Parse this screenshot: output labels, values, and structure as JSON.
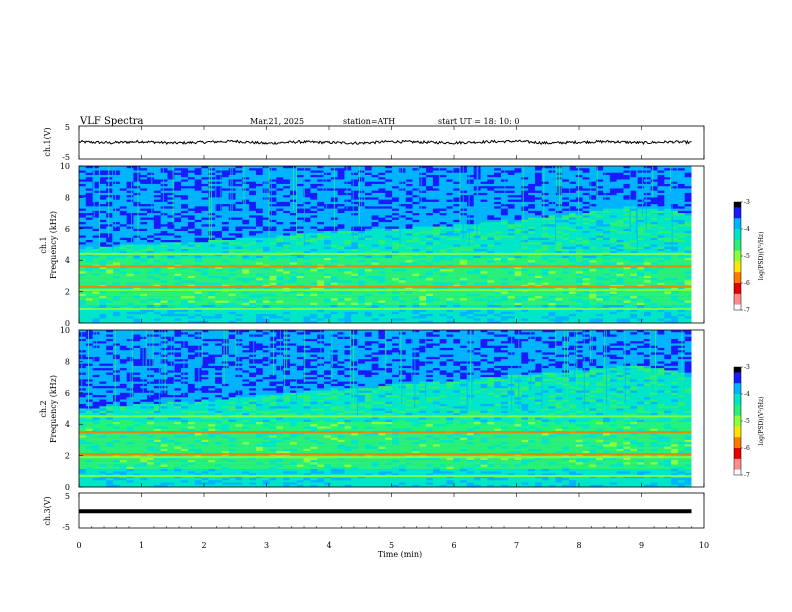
{
  "header": {
    "title": "VLF  Spectra",
    "date": "Mar.21, 2025",
    "station": "station=ATH",
    "start": "start  UT  =    18: 10: 0"
  },
  "colorbar": {
    "label": "log(PSD)(V²/Hz)",
    "ticks": [
      "-3",
      "-4",
      "-5",
      "-6",
      "-7"
    ],
    "colors": [
      "#000000",
      "#1a1aff",
      "#00b4ff",
      "#00e6c8",
      "#28f07a",
      "#8cff3c",
      "#ffe600",
      "#ff7800",
      "#e60000",
      "#ff8c8c",
      "#ffffff"
    ]
  },
  "chart_data": [
    {
      "type": "line",
      "panel": "ch1",
      "ylabel": "ch.1(V)",
      "xlabel": "",
      "ylim": [
        -5,
        5
      ],
      "yticks": [
        "5",
        "-5"
      ],
      "x": [
        0,
        0.5,
        1,
        1.5,
        2,
        2.5,
        3,
        3.5,
        4,
        4.5,
        5,
        5.5,
        6,
        6.5,
        7,
        7.5,
        8,
        8.5,
        9,
        9.5,
        9.8
      ],
      "values": [
        0.2,
        -0.1,
        0.3,
        -0.2,
        0.1,
        0.4,
        -0.3,
        0.2,
        0.0,
        -0.2,
        0.3,
        0.1,
        -0.1,
        0.2,
        0.4,
        -0.2,
        0.1,
        0.3,
        -0.1,
        0.2,
        0.0
      ]
    },
    {
      "type": "heatmap",
      "panel": "ch1-spectrogram",
      "ylabel": "ch.1\nFrequency (kHz)",
      "ylim": [
        0,
        10
      ],
      "yticks": [
        "0",
        "2",
        "4",
        "6",
        "8",
        "10"
      ],
      "xlim": [
        0,
        10
      ],
      "data_end_min": 9.8,
      "value_range": [
        -7,
        -3
      ],
      "hiss_upper_khz": {
        "x": [
          0,
          2,
          4,
          6,
          8,
          8.8,
          9.5,
          9.8
        ],
        "y": [
          4.8,
          5.2,
          5.8,
          6.2,
          7.0,
          7.4,
          7.2,
          6.8
        ]
      },
      "bands_khz": [
        0.9,
        2.1,
        2.3,
        3.6,
        4.4
      ]
    },
    {
      "type": "heatmap",
      "panel": "ch2-spectrogram",
      "ylabel": "ch.2\nFrequency (kHz)",
      "ylim": [
        0,
        10
      ],
      "yticks": [
        "0",
        "2",
        "4",
        "6",
        "8",
        "10"
      ],
      "xlim": [
        0,
        10
      ],
      "data_end_min": 9.8,
      "value_range": [
        -7,
        -3
      ],
      "hiss_upper_khz": {
        "x": [
          0,
          2,
          4,
          6,
          8,
          8.8,
          9.5,
          9.8
        ],
        "y": [
          5.0,
          5.5,
          6.2,
          6.8,
          7.4,
          7.8,
          7.4,
          7.0
        ]
      },
      "bands_khz": [
        0.7,
        1.9,
        2.1,
        3.5,
        4.5
      ]
    },
    {
      "type": "line",
      "panel": "ch3",
      "ylabel": "ch.3(V)",
      "xlabel": "Time  (min)",
      "ylim": [
        -5,
        5
      ],
      "yticks": [
        "5",
        "-5"
      ],
      "xlim": [
        0,
        10
      ],
      "xticks": [
        "0",
        "1",
        "2",
        "3",
        "4",
        "5",
        "6",
        "7",
        "8",
        "9",
        "10"
      ],
      "x": [
        0,
        9.8
      ],
      "values": [
        -0.2,
        -0.2
      ]
    }
  ]
}
